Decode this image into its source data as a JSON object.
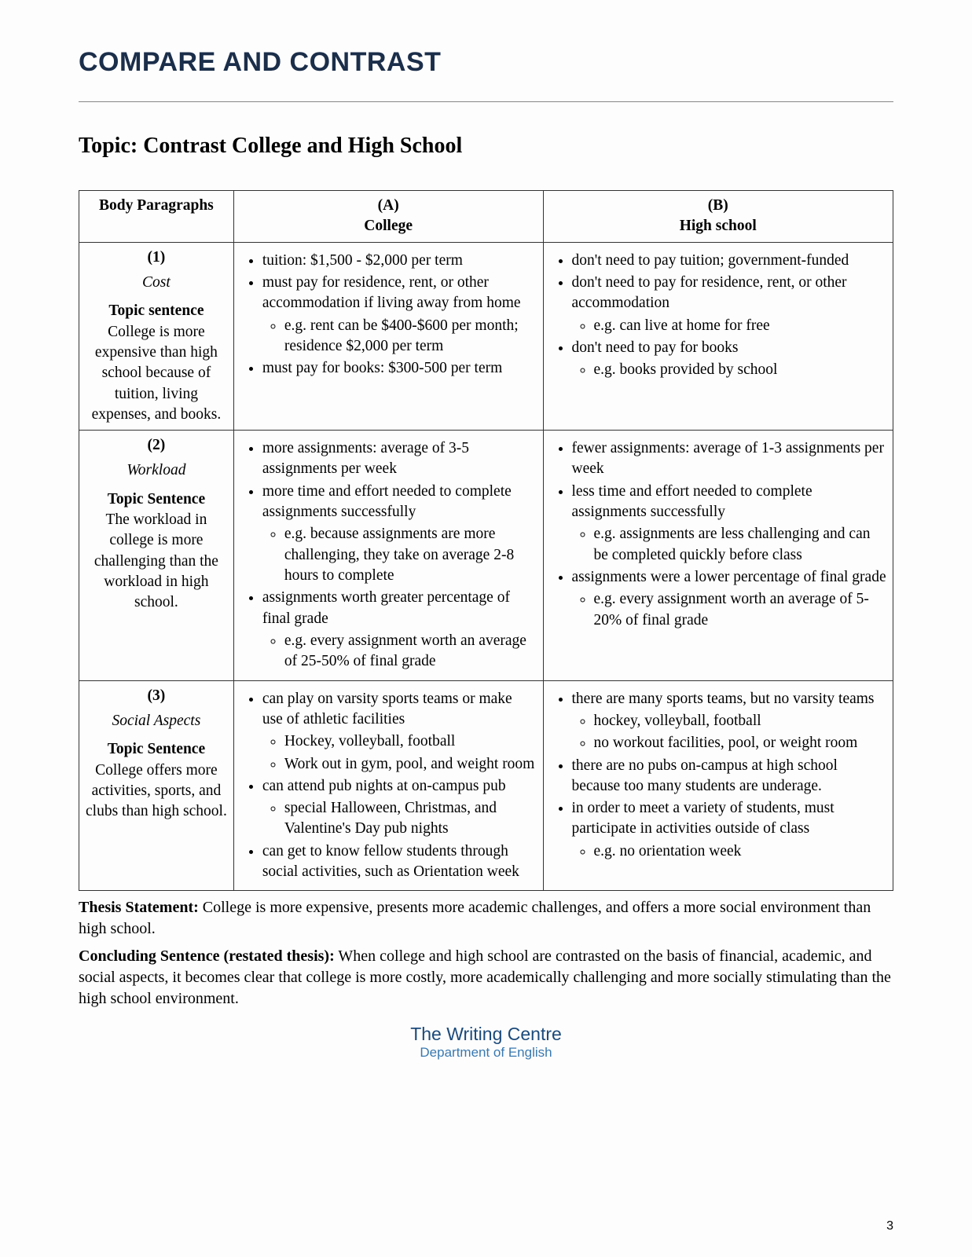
{
  "heading": "COMPARE AND CONTRAST",
  "topic": "Topic: Contrast College and High School",
  "table": {
    "headers": {
      "body": "Body Paragraphs",
      "a_top": "(A)",
      "a_sub": "College",
      "b_top": "(B)",
      "b_sub": "High school"
    },
    "rows": [
      {
        "num": "(1)",
        "name": "Cost",
        "ts_label": "Topic sentence",
        "ts_text": "College is more expensive than high school because of tuition, living expenses, and books.",
        "a": [
          {
            "text": "tuition: $1,500 - $2,000 per term"
          },
          {
            "text": "must pay for residence, rent, or other accommodation if living away from home",
            "sub": [
              "e.g. rent can be $400-$600 per month; residence $2,000 per term"
            ]
          },
          {
            "text": "must pay for books: $300-500 per term"
          }
        ],
        "b": [
          {
            "text": "don't need to pay tuition; government-funded"
          },
          {
            "text": "don't need to pay for residence, rent, or other accommodation",
            "sub": [
              "e.g. can live at home for free"
            ]
          },
          {
            "text": "don't need to pay for books",
            "sub": [
              "e.g. books provided by school"
            ]
          }
        ]
      },
      {
        "num": "(2)",
        "name": "Workload",
        "ts_label": "Topic Sentence",
        "ts_text": "The workload in college is more challenging than the workload in high school.",
        "a": [
          {
            "text": "more assignments: average of 3-5 assignments per week"
          },
          {
            "text": "more time and effort needed to complete assignments successfully",
            "sub": [
              "e.g. because assignments are more challenging, they take on average 2-8 hours to complete"
            ]
          },
          {
            "text": "assignments worth greater percentage of final grade",
            "sub": [
              "e.g. every assignment worth an average of 25-50% of final grade"
            ]
          }
        ],
        "b": [
          {
            "text": "fewer assignments: average of 1-3 assignments per week"
          },
          {
            "text": "less time and effort needed to complete assignments successfully",
            "sub": [
              "e.g. assignments are less challenging and can be completed quickly before class"
            ]
          },
          {
            "text": "assignments were a lower percentage of final grade",
            "sub": [
              "e.g. every assignment worth an average of 5-20% of final grade"
            ]
          }
        ]
      },
      {
        "num": "(3)",
        "name": "Social Aspects",
        "ts_label": "Topic Sentence",
        "ts_text": "College offers more activities, sports, and clubs than high school.",
        "a": [
          {
            "text": "can play on varsity sports teams or make use of athletic facilities",
            "sub": [
              "Hockey, volleyball, football",
              "Work out in gym, pool, and weight room"
            ]
          },
          {
            "text": "can attend pub nights at on-campus pub",
            "sub": [
              "special Halloween, Christmas, and Valentine's Day pub nights"
            ]
          },
          {
            "text": "can get to know fellow students through social activities, such as Orientation week"
          }
        ],
        "b": [
          {
            "text": "there are many sports teams, but no varsity teams",
            "sub": [
              "hockey, volleyball, football",
              "no workout facilities, pool, or weight room"
            ]
          },
          {
            "text": "there are no pubs on-campus at high school because too many students are underage."
          },
          {
            "text": "in order to meet a variety of students, must participate in activities outside of class",
            "sub": [
              "e.g. no orientation week"
            ]
          }
        ]
      }
    ]
  },
  "thesis_label": "Thesis Statement:",
  "thesis_text": "College is more expensive, presents more academic challenges, and offers a more social environment than high school.",
  "conclusion_label": "Concluding Sentence (restated thesis):",
  "conclusion_text": "When college and high school are contrasted on the basis of financial, academic, and social aspects, it becomes clear that college is more costly, more academically challenging and more socially stimulating than the high school environment.",
  "footer_title": "The Writing Centre",
  "footer_sub": "Department of English",
  "page_number": "3"
}
